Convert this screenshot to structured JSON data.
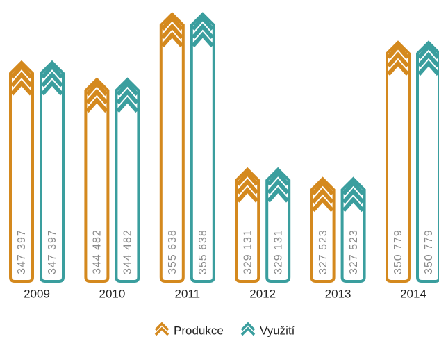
{
  "chart_data": {
    "type": "bar",
    "categories": [
      "2009",
      "2010",
      "2011",
      "2012",
      "2013",
      "2014"
    ],
    "series": [
      {
        "name": "Produkce",
        "color": "#d4891e",
        "values": [
          347397,
          344482,
          355638,
          329131,
          327523,
          350779
        ],
        "value_labels": [
          "347 397",
          "344 482",
          "355 638",
          "329 131",
          "327 523",
          "350 779"
        ]
      },
      {
        "name": "Využití",
        "color": "#3a9e9e",
        "values": [
          347397,
          344482,
          355638,
          329131,
          327523,
          350779
        ],
        "value_labels": [
          "347 397",
          "344 482",
          "355 638",
          "329 131",
          "327 523",
          "350 779"
        ]
      }
    ],
    "ylim": [
      310000,
      356000
    ],
    "legend": "bottom"
  }
}
